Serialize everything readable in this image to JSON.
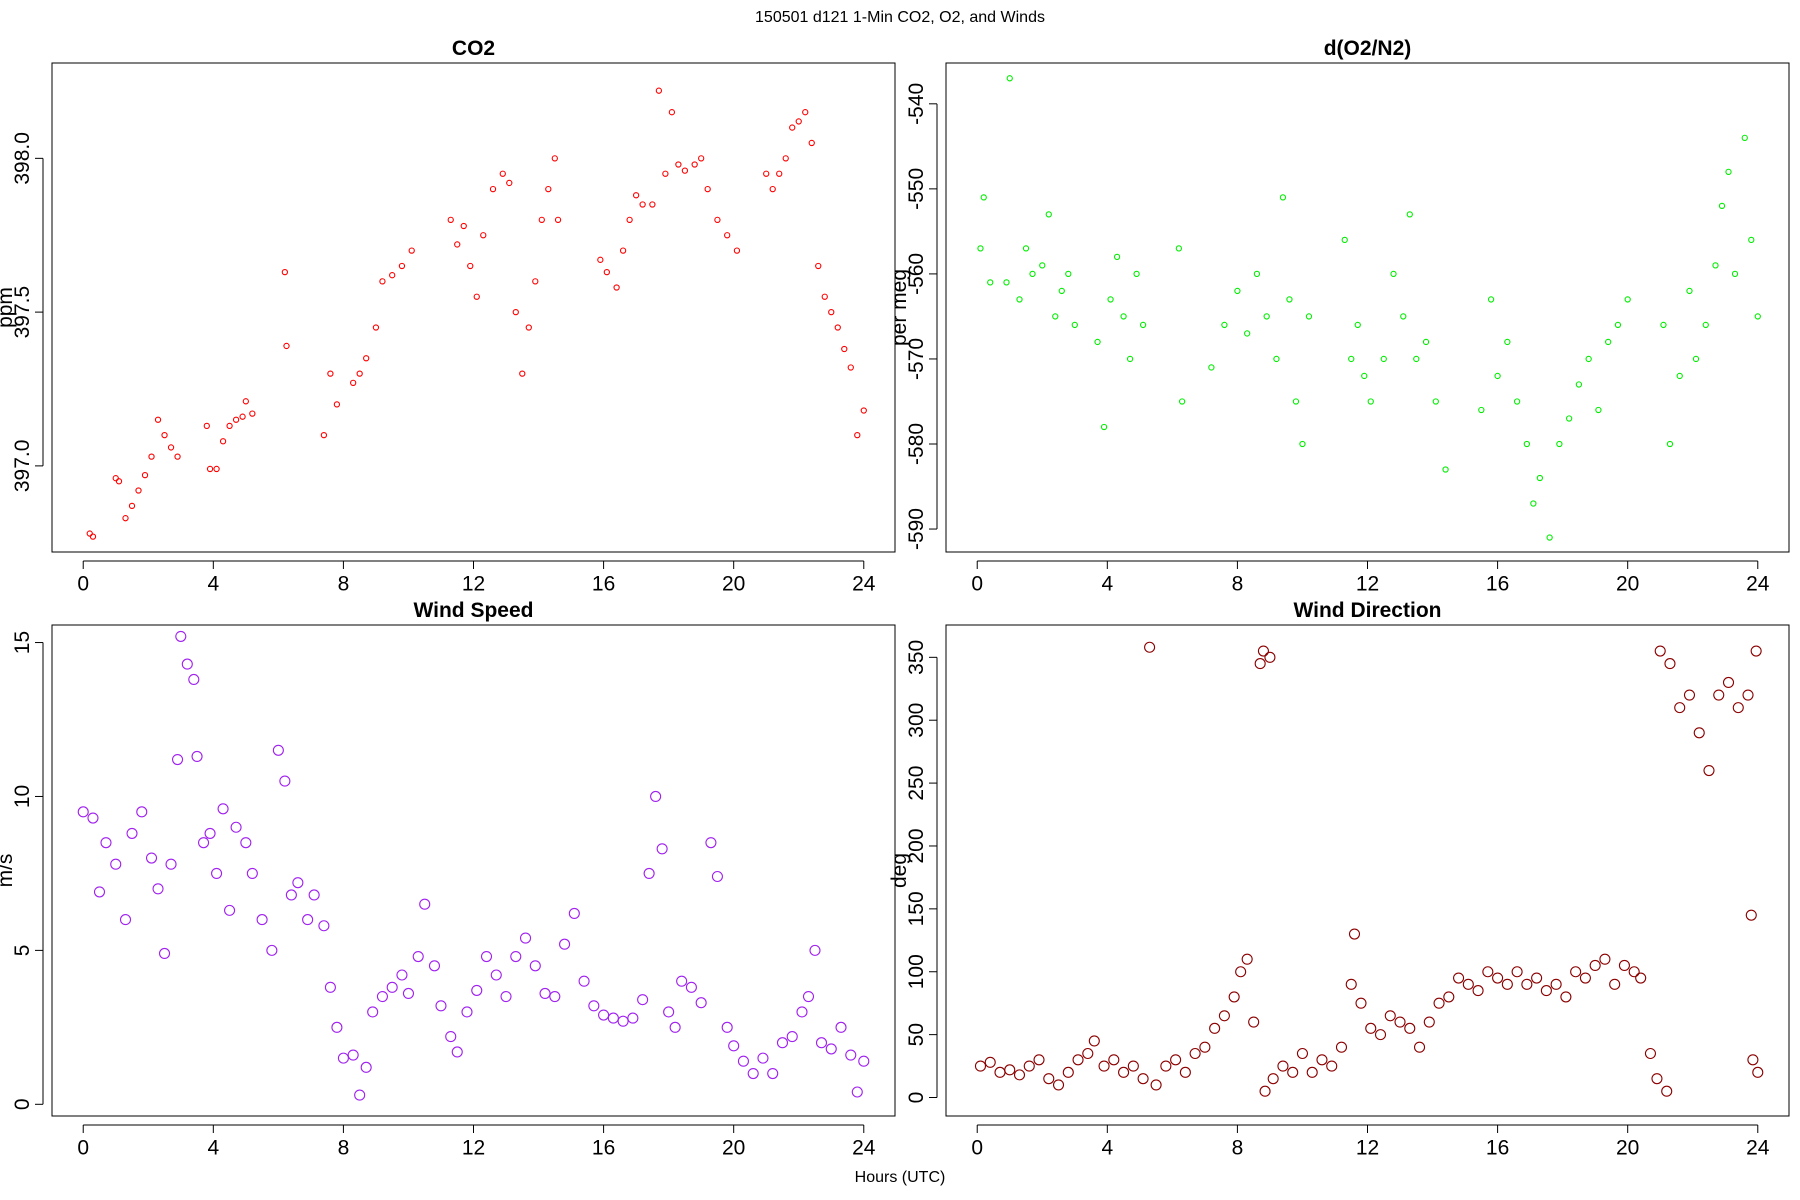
{
  "title": "150501   d121   1-Min CO2, O2, and Winds",
  "xlabel": "Hours (UTC)",
  "chart_data": [
    {
      "type": "scatter",
      "title": "CO2",
      "ylabel": "ppm",
      "color": "#ff0000",
      "xlim": [
        -0.96,
        24.96
      ],
      "xticks": [
        0,
        4,
        8,
        12,
        16,
        20,
        24
      ],
      "ylim": [
        396.72,
        398.31
      ],
      "yticks": [
        {
          "value": 397,
          "label": "397.0"
        },
        397.5,
        {
          "value": 398,
          "label": "398.0"
        }
      ],
      "x": [
        0.2,
        0.3,
        1.0,
        1.1,
        1.3,
        1.5,
        1.7,
        1.9,
        2.1,
        2.3,
        2.5,
        2.7,
        2.9,
        3.8,
        3.9,
        4.1,
        4.3,
        4.5,
        4.7,
        4.9,
        5.0,
        5.2,
        6.2,
        6.25,
        7.4,
        7.6,
        7.8,
        8.3,
        8.5,
        8.7,
        9.0,
        9.2,
        9.5,
        9.8,
        10.1,
        11.3,
        11.5,
        11.7,
        11.9,
        12.1,
        12.3,
        12.6,
        12.9,
        13.1,
        13.3,
        13.5,
        13.7,
        13.9,
        14.1,
        14.3,
        14.5,
        14.6,
        15.9,
        16.1,
        16.4,
        16.6,
        16.8,
        17.0,
        17.2,
        17.5,
        17.7,
        17.9,
        18.1,
        18.3,
        18.5,
        18.8,
        19.0,
        19.2,
        19.5,
        19.8,
        20.1,
        21.0,
        21.2,
        21.4,
        21.6,
        21.8,
        22.0,
        22.2,
        22.4,
        22.6,
        22.8,
        23.0,
        23.2,
        23.4,
        23.6,
        23.8,
        24.0
      ],
      "values": [
        396.78,
        396.77,
        396.96,
        396.95,
        396.83,
        396.87,
        396.92,
        396.97,
        397.03,
        397.15,
        397.1,
        397.06,
        397.03,
        397.13,
        396.99,
        396.99,
        397.08,
        397.13,
        397.15,
        397.16,
        397.21,
        397.17,
        397.63,
        397.39,
        397.1,
        397.3,
        397.2,
        397.27,
        397.3,
        397.35,
        397.45,
        397.6,
        397.62,
        397.65,
        397.7,
        397.8,
        397.72,
        397.78,
        397.65,
        397.55,
        397.75,
        397.9,
        397.95,
        397.92,
        397.5,
        397.3,
        397.45,
        397.6,
        397.8,
        397.9,
        398.0,
        397.8,
        397.67,
        397.63,
        397.58,
        397.7,
        397.8,
        397.88,
        397.85,
        397.85,
        398.22,
        397.95,
        398.15,
        397.98,
        397.96,
        397.98,
        398.0,
        397.9,
        397.8,
        397.75,
        397.7,
        397.95,
        397.9,
        397.95,
        398.0,
        398.1,
        398.12,
        398.15,
        398.05,
        397.65,
        397.55,
        397.5,
        397.45,
        397.38,
        397.32,
        397.1,
        397.18
      ]
    },
    {
      "type": "scatter",
      "title": "d(O2/N2)",
      "ylabel": "per meg",
      "color": "#00ee00",
      "xlim": [
        -0.96,
        24.96
      ],
      "xticks": [
        0,
        4,
        8,
        12,
        16,
        20,
        24
      ],
      "ylim": [
        -592.7,
        -535.2
      ],
      "yticks": [
        -590,
        -580,
        -570,
        -560,
        -550,
        -540
      ],
      "x": [
        0.1,
        0.2,
        0.4,
        0.9,
        1.0,
        1.3,
        1.5,
        1.7,
        2.0,
        2.2,
        2.4,
        2.6,
        2.8,
        3.0,
        3.7,
        3.9,
        4.1,
        4.3,
        4.5,
        4.7,
        4.9,
        5.1,
        6.2,
        6.3,
        7.2,
        7.6,
        8.0,
        8.3,
        8.6,
        8.9,
        9.2,
        9.4,
        9.6,
        9.8,
        10.0,
        10.2,
        11.3,
        11.5,
        11.7,
        11.9,
        12.1,
        12.5,
        12.8,
        13.1,
        13.3,
        13.5,
        13.8,
        14.1,
        14.4,
        15.5,
        15.8,
        16.0,
        16.3,
        16.6,
        16.9,
        17.1,
        17.3,
        17.6,
        17.9,
        18.2,
        18.5,
        18.8,
        19.1,
        19.4,
        19.7,
        20.0,
        21.1,
        21.3,
        21.6,
        21.9,
        22.1,
        22.4,
        22.7,
        22.9,
        23.1,
        23.3,
        23.6,
        23.8,
        24.0
      ],
      "values": [
        -557,
        -551,
        -561,
        -561,
        -537,
        -563,
        -557,
        -560,
        -559,
        -553,
        -565,
        -562,
        -560,
        -566,
        -568,
        -578,
        -563,
        -558,
        -565,
        -570,
        -560,
        -566,
        -557,
        -575,
        -571,
        -566,
        -562,
        -567,
        -560,
        -565,
        -570,
        -551,
        -563,
        -575,
        -580,
        -565,
        -556,
        -570,
        -566,
        -572,
        -575,
        -570,
        -560,
        -565,
        -553,
        -570,
        -568,
        -575,
        -583,
        -576,
        -563,
        -572,
        -568,
        -575,
        -580,
        -587,
        -584,
        -591,
        -580,
        -577,
        -573,
        -570,
        -576,
        -568,
        -566,
        -563,
        -566,
        -580,
        -572,
        -562,
        -570,
        -566,
        -559,
        -552,
        -548,
        -560,
        -544,
        -556,
        -565
      ]
    },
    {
      "type": "scatter",
      "title": "Wind Speed",
      "ylabel": "m/s",
      "color": "#a020f0",
      "xlim": [
        -0.96,
        24.96
      ],
      "xticks": [
        0,
        4,
        8,
        12,
        16,
        20,
        24
      ],
      "ylim": [
        -0.38,
        15.57
      ],
      "yticks": [
        0,
        5,
        10,
        15
      ],
      "x": [
        0,
        0.3,
        0.5,
        0.7,
        1.0,
        1.3,
        1.5,
        1.8,
        2.1,
        2.3,
        2.5,
        2.7,
        2.9,
        3.0,
        3.2,
        3.4,
        3.5,
        3.7,
        3.9,
        4.1,
        4.3,
        4.5,
        4.7,
        5.0,
        5.2,
        5.5,
        5.8,
        6.0,
        6.2,
        6.4,
        6.6,
        6.9,
        7.1,
        7.4,
        7.6,
        7.8,
        8.0,
        8.3,
        8.5,
        8.7,
        8.9,
        9.2,
        9.5,
        9.8,
        10.0,
        10.3,
        10.5,
        10.8,
        11.0,
        11.3,
        11.5,
        11.8,
        12.1,
        12.4,
        12.7,
        13.0,
        13.3,
        13.6,
        13.9,
        14.2,
        14.5,
        14.8,
        15.1,
        15.4,
        15.7,
        16.0,
        16.3,
        16.6,
        16.9,
        17.2,
        17.4,
        17.6,
        17.8,
        18.0,
        18.2,
        18.4,
        18.7,
        19.0,
        19.3,
        19.5,
        19.8,
        20.0,
        20.3,
        20.6,
        20.9,
        21.2,
        21.5,
        21.8,
        22.1,
        22.3,
        22.5,
        22.7,
        23.0,
        23.3,
        23.6,
        23.8,
        24.0
      ],
      "values": [
        9.5,
        9.3,
        6.9,
        8.5,
        7.8,
        6.0,
        8.8,
        9.5,
        8.0,
        7.0,
        4.9,
        7.8,
        11.2,
        15.2,
        14.3,
        13.8,
        11.3,
        8.5,
        8.8,
        7.5,
        9.6,
        6.3,
        9.0,
        8.5,
        7.5,
        6.0,
        5.0,
        11.5,
        10.5,
        6.8,
        7.2,
        6.0,
        6.8,
        5.8,
        3.8,
        2.5,
        1.5,
        1.6,
        0.3,
        1.2,
        3.0,
        3.5,
        3.8,
        4.2,
        3.6,
        4.8,
        6.5,
        4.5,
        3.2,
        2.2,
        1.7,
        3.0,
        3.7,
        4.8,
        4.2,
        3.5,
        4.8,
        5.4,
        4.5,
        3.6,
        3.5,
        5.2,
        6.2,
        4.0,
        3.2,
        2.9,
        2.8,
        2.7,
        2.8,
        3.4,
        7.5,
        10.0,
        8.3,
        3.0,
        2.5,
        4.0,
        3.8,
        3.3,
        8.5,
        7.4,
        2.5,
        1.9,
        1.4,
        1.0,
        1.5,
        1.0,
        2.0,
        2.2,
        3.0,
        3.5,
        5.0,
        2.0,
        1.8,
        2.5,
        1.6,
        0.4,
        1.4
      ]
    },
    {
      "type": "scatter",
      "title": "Wind Direction",
      "ylabel": "deg",
      "color": "#8b0000",
      "xlim": [
        -0.96,
        24.96
      ],
      "xticks": [
        0,
        4,
        8,
        12,
        16,
        20,
        24
      ],
      "ylim": [
        -14.7,
        375.7
      ],
      "yticks": [
        0,
        50,
        100,
        150,
        200,
        250,
        300,
        350
      ],
      "x": [
        0.1,
        0.4,
        0.7,
        1.0,
        1.3,
        1.6,
        1.9,
        2.2,
        2.5,
        2.8,
        3.1,
        3.4,
        3.6,
        3.9,
        4.2,
        4.5,
        4.8,
        5.1,
        5.3,
        5.5,
        5.8,
        6.1,
        6.4,
        6.7,
        7.0,
        7.3,
        7.6,
        7.9,
        8.1,
        8.3,
        8.5,
        8.7,
        8.8,
        9.0,
        8.85,
        9.1,
        9.4,
        9.7,
        10.0,
        10.3,
        10.6,
        10.9,
        11.2,
        11.5,
        11.6,
        11.8,
        12.1,
        12.4,
        12.7,
        13.0,
        13.3,
        13.6,
        13.9,
        14.2,
        14.5,
        14.8,
        15.1,
        15.4,
        15.7,
        16.0,
        16.3,
        16.6,
        16.9,
        17.2,
        17.5,
        17.8,
        18.1,
        18.4,
        18.7,
        19.0,
        19.3,
        19.6,
        19.9,
        20.2,
        20.4,
        20.7,
        20.9,
        21.2,
        21.0,
        21.3,
        21.6,
        21.9,
        22.2,
        22.5,
        22.8,
        23.1,
        23.4,
        23.7,
        23.8,
        23.85,
        24.0,
        23.95
      ],
      "values": [
        25,
        28,
        20,
        22,
        18,
        25,
        30,
        15,
        10,
        20,
        30,
        35,
        45,
        25,
        30,
        20,
        25,
        15,
        358,
        10,
        25,
        30,
        20,
        35,
        40,
        55,
        65,
        80,
        100,
        110,
        60,
        345,
        355,
        350,
        5,
        15,
        25,
        20,
        35,
        20,
        30,
        25,
        40,
        90,
        130,
        75,
        55,
        50,
        65,
        60,
        55,
        40,
        60,
        75,
        80,
        95,
        90,
        85,
        100,
        95,
        90,
        100,
        90,
        95,
        85,
        90,
        80,
        100,
        95,
        105,
        110,
        90,
        105,
        100,
        95,
        35,
        15,
        5,
        355,
        345,
        310,
        320,
        290,
        260,
        320,
        330,
        310,
        320,
        145,
        30,
        20,
        355
      ]
    }
  ]
}
